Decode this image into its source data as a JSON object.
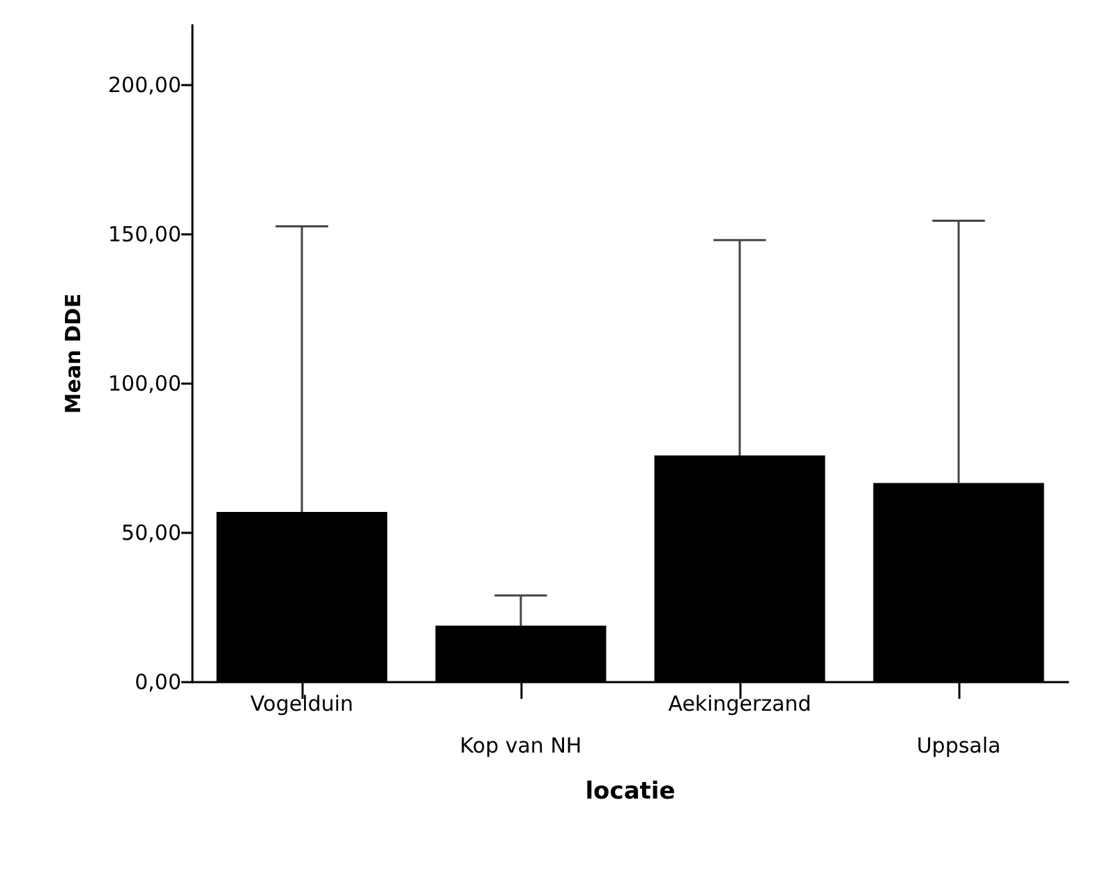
{
  "chart_data": {
    "type": "bar",
    "xlabel": "locatie",
    "ylabel": "Mean DDE",
    "categories": [
      "Vogelduin",
      "Kop van NH",
      "Aekingerzand",
      "Uppsala"
    ],
    "values": [
      57,
      18.9,
      75.9,
      66.7
    ],
    "color": "#000000",
    "errors": [
      [
        57,
        152.6
      ],
      [
        18.9,
        29
      ],
      [
        75.9,
        148
      ],
      [
        66.7,
        154.5
      ]
    ],
    "ylim": [
      0,
      220
    ],
    "yticks": [
      {
        "value": 0,
        "label": "0,00"
      },
      {
        "value": 50,
        "label": "50,00"
      },
      {
        "value": 100,
        "label": "100,00"
      },
      {
        "value": 150,
        "label": "150,00"
      },
      {
        "value": 200,
        "label": "200,00"
      }
    ],
    "grid": false
  }
}
